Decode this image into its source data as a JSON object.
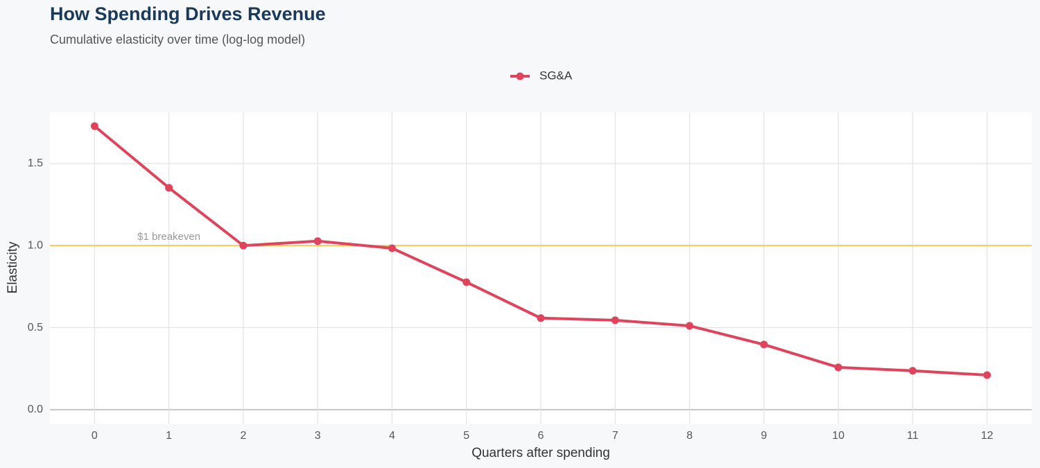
{
  "chart_data": {
    "type": "line",
    "title": "How Spending Drives Revenue",
    "subtitle": "Cumulative elasticity over time (log-log model)",
    "x_label": "Quarters after spending",
    "y_label": "Elasticity",
    "x": [
      0,
      1,
      2,
      3,
      4,
      5,
      6,
      7,
      8,
      9,
      10,
      11,
      12
    ],
    "series": [
      {
        "name": "SG&A",
        "color": "#e0435c",
        "values": [
          1.728,
          1.352,
          1.0,
          1.027,
          0.984,
          0.777,
          0.558,
          0.545,
          0.511,
          0.397,
          0.258,
          0.237,
          0.211
        ]
      }
    ],
    "xlim": [
      -0.6,
      12.6
    ],
    "xticks": [
      0,
      1,
      2,
      3,
      4,
      5,
      6,
      7,
      8,
      9,
      10,
      11,
      12
    ],
    "ylim": [
      -0.085,
      1.812
    ],
    "yticks": [
      {
        "value": 0,
        "label": "0.0"
      },
      0.5,
      {
        "value": 1,
        "label": "1.0"
      },
      1.5
    ],
    "grid": true,
    "legend": "top",
    "reference_line": {
      "value": 1,
      "label": "$1 breakeven",
      "color": "#f2cd5c"
    }
  }
}
